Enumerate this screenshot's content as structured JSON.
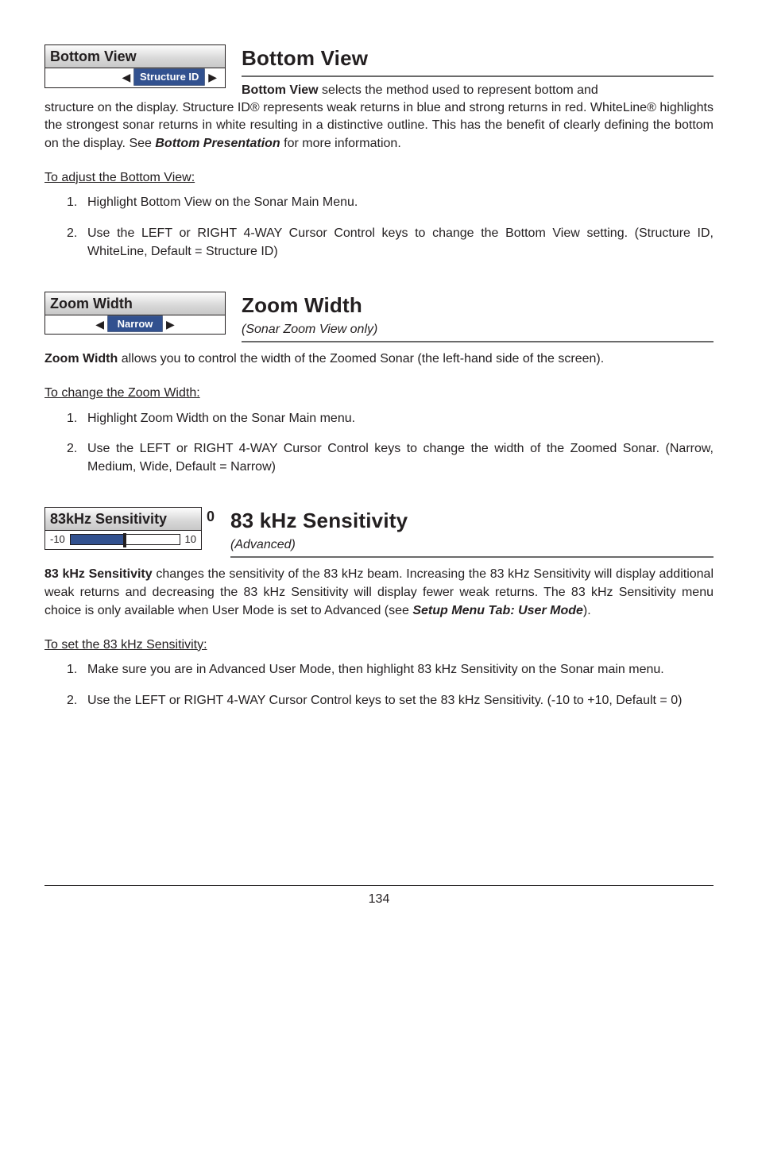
{
  "page_number": "134",
  "bottom_view": {
    "widget_title": "Bottom View",
    "widget_value": "Structure ID",
    "heading": "Bottom View",
    "lead_bold": "Bottom View",
    "lead_rest_line": " selects the method used to represent bottom and",
    "body_cont": "structure on the display. Structure ID® represents weak returns in blue and strong returns in red. WhiteLine® highlights the strongest sonar returns in white resulting in a distinctive outline. This has the benefit of clearly defining the bottom on the display. See ",
    "body_bold_ref": "Bottom Presentation",
    "body_tail": " for more information.",
    "subhead": "To adjust the Bottom View:",
    "steps": [
      "Highlight Bottom View on the Sonar Main Menu.",
      "Use the LEFT or RIGHT 4-WAY Cursor Control keys to change the Bottom View setting. (Structure ID, WhiteLine, Default = Structure ID)"
    ]
  },
  "zoom_width": {
    "widget_title": "Zoom Width",
    "widget_value": "Narrow",
    "heading": "Zoom Width",
    "subtitle": "(Sonar Zoom View only)",
    "body_bold": "Zoom Width",
    "body_rest": " allows you to control the width of the Zoomed Sonar (the left-hand side of the screen).",
    "subhead": "To change the Zoom Width:",
    "steps": [
      "Highlight Zoom Width on the Sonar Main menu.",
      "Use the LEFT or RIGHT 4-WAY Cursor Control keys to change the width of the Zoomed Sonar. (Narrow, Medium, Wide, Default = Narrow)"
    ]
  },
  "khz": {
    "widget_title": "83kHz Sensitivity",
    "widget_value_right": "0",
    "slider_min_label": "-10",
    "slider_max_label": "10",
    "slider_fill_percent": 50,
    "slider_thumb_percent": 50,
    "heading": "83 kHz Sensitivity",
    "subtitle": "(Advanced)",
    "body_bold": "83 kHz Sensitivity",
    "body_rest": " changes the sensitivity of the 83 kHz beam. Increasing the 83 kHz Sensitivity will display additional weak returns and decreasing the 83 kHz Sensitivity will display fewer weak returns. The 83 kHz Sensitivity menu choice is only available when User Mode is set to Advanced (see ",
    "body_bold_ref": "Setup Menu Tab: User Mode",
    "body_tail": ").",
    "subhead": "To set the 83 kHz Sensitivity:",
    "steps": [
      "Make sure you are in Advanced User Mode, then highlight 83 kHz Sensitivity on the Sonar main menu.",
      "Use the LEFT or RIGHT 4-WAY Cursor Control keys to set the 83 kHz Sensitivity. (-10 to +10, Default = 0)"
    ]
  }
}
